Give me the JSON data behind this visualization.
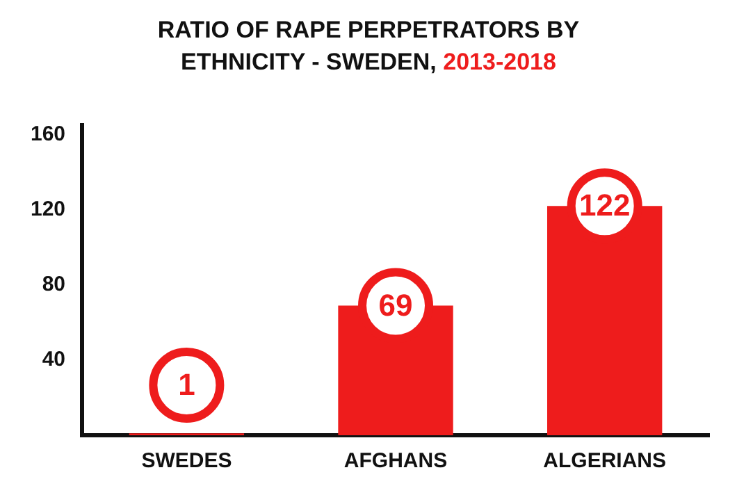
{
  "chart_data": {
    "type": "bar",
    "title": "RATIO OF RAPE PERPETRATORS BY ETHNICITY - SWEDEN,",
    "subtitle": "2013-2018",
    "categories": [
      "SWEDES",
      "AFGHANS",
      "ALGERIANS"
    ],
    "values": [
      1,
      69,
      122
    ],
    "color": "#ee1c1c",
    "ylim": [
      0,
      165
    ],
    "yticks": [
      40,
      80,
      120,
      160
    ],
    "grid": false,
    "data_labels": true
  }
}
